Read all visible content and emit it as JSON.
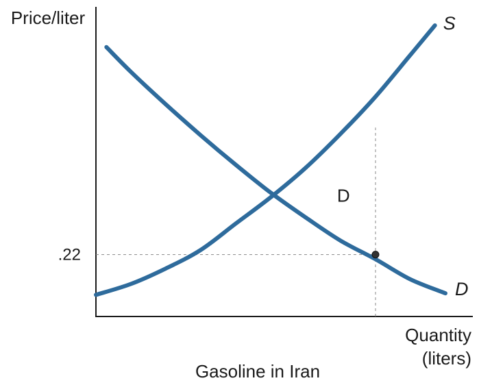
{
  "chart_data": {
    "type": "line",
    "title": "",
    "caption": "Gasoline in Iran",
    "ylabel": "Price/liter",
    "xlabel_line1": "Quantity",
    "xlabel_line2": "(liters)",
    "xlim": [
      0,
      100
    ],
    "ylim": [
      0,
      100
    ],
    "y_ticks": [
      {
        "value": 20,
        "label": ".22"
      }
    ],
    "grid": false,
    "legend": "none",
    "line_color": "#2e6b9c",
    "series": [
      {
        "name": "S",
        "x": [
          0,
          10,
          20,
          30,
          40,
          50,
          60,
          70,
          80,
          90,
          97
        ],
        "y": [
          7,
          10.5,
          15.5,
          21.5,
          30,
          38.5,
          48,
          59,
          71,
          84.5,
          94
        ]
      },
      {
        "name": "D",
        "x": [
          3,
          10,
          20,
          30,
          40,
          50,
          60,
          70,
          80,
          90,
          100
        ],
        "y": [
          87,
          79,
          68.5,
          58.5,
          49,
          40,
          32,
          24.5,
          18.5,
          12,
          7.5
        ]
      }
    ],
    "annotations": [
      {
        "text": "D",
        "x": 69,
        "y": 39
      }
    ],
    "marker": {
      "x": 80,
      "y": 20
    },
    "guides": {
      "horizontal_y": 20,
      "vertical_x": 80,
      "vertical_from_y": 0,
      "vertical_to_y": 61
    }
  }
}
